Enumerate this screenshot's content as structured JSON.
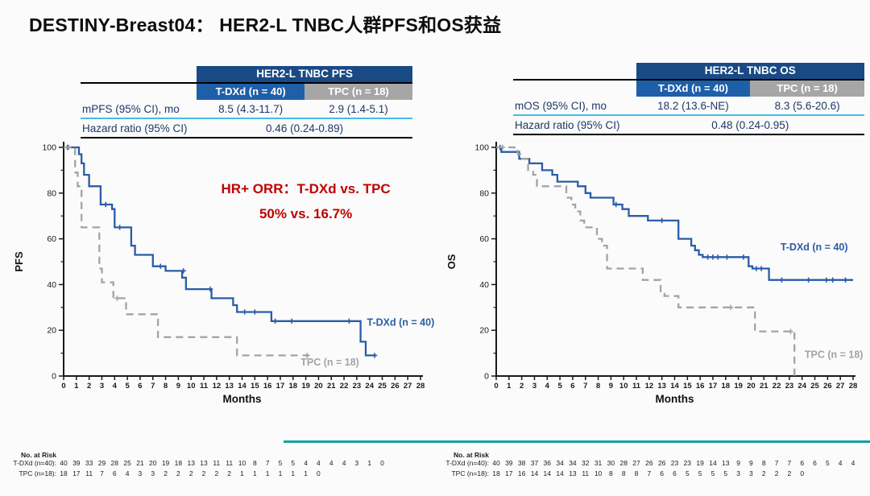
{
  "title": "DESTINY-Breast04： HER2-L TNBC人群PFS和OS获益",
  "colors": {
    "tdxd_blue": "#2a5ca8",
    "tpc_gray": "#a3a3a3",
    "header_navy": "#1a4a85",
    "subheader_blue": "#1e5fa9",
    "subheader_gray": "#a6a6a6",
    "table_text_navy": "#1f3864",
    "cyan_rule": "#44bde8",
    "annotation_red": "#c00000",
    "bottom_teal": "#14a4a1"
  },
  "panels": [
    {
      "table": {
        "header": "HER2-L TNBC PFS",
        "col1": "T-DXd (n = 40)",
        "col2": "TPC (n = 18)",
        "rows": [
          {
            "label": "mPFS (95% CI), mo",
            "v1": "8.5 (4.3-11.7)",
            "v2": "2.9 (1.4-5.1)"
          },
          {
            "label": "Hazard ratio (95% CI)",
            "value": "0.46 (0.24-0.89)"
          }
        ]
      },
      "at_risk": {
        "heading": "No. at Risk",
        "rows": [
          {
            "label": "T-DXd (n=40):",
            "values": [
              40,
              39,
              33,
              29,
              28,
              25,
              21,
              20,
              19,
              18,
              13,
              13,
              11,
              11,
              10,
              8,
              7,
              5,
              5,
              4,
              4,
              4,
              4,
              3,
              1,
              0
            ]
          },
          {
            "label": "TPC (n=18):",
            "values": [
              18,
              17,
              11,
              7,
              6,
              4,
              3,
              3,
              2,
              2,
              2,
              2,
              2,
              2,
              1,
              1,
              1,
              1,
              1,
              1,
              0
            ]
          }
        ]
      }
    },
    {
      "table": {
        "header": "HER2-L TNBC OS",
        "col1": "T-DXd (n = 40)",
        "col2": "TPC (n = 18)",
        "rows": [
          {
            "label": "mOS (95% CI), mo",
            "v1": "18.2 (13.6-NE)",
            "v2": "8.3 (5.6-20.6)"
          },
          {
            "label": "Hazard ratio (95% CI)",
            "value": "0.48 (0.24-0.95)"
          }
        ]
      },
      "at_risk": {
        "heading": "No. at Risk",
        "rows": [
          {
            "label": "T-DXd (n=40):",
            "values": [
              40,
              39,
              38,
              37,
              36,
              34,
              34,
              32,
              31,
              30,
              28,
              27,
              26,
              26,
              23,
              23,
              19,
              14,
              13,
              9,
              9,
              8,
              7,
              7,
              6,
              6,
              5,
              4,
              4
            ]
          },
          {
            "label": "TPC (n=18):",
            "values": [
              18,
              17,
              16,
              14,
              14,
              14,
              13,
              11,
              10,
              8,
              8,
              8,
              7,
              6,
              6,
              5,
              5,
              5,
              5,
              3,
              3,
              2,
              2,
              2,
              0
            ]
          }
        ]
      }
    }
  ],
  "chart_data": [
    {
      "type": "line",
      "subtype": "kaplan-meier",
      "title": "HER2-L TNBC PFS",
      "xlabel": "Months",
      "ylabel": "PFS",
      "xlim": [
        0,
        28
      ],
      "ylim": [
        0,
        100
      ],
      "x_tick_step": 1,
      "y_major_ticks": [
        0,
        20,
        40,
        60,
        80,
        100
      ],
      "y_minor_ticks": [
        10,
        30,
        50,
        70,
        90
      ],
      "grid": false,
      "legend_position": "in-plot-labels",
      "annotation": {
        "color": "#c00000",
        "cx": 19,
        "lines": [
          {
            "text": "HR+ ORR：T-DXd vs. TPC",
            "v": 80
          },
          {
            "text": "50% vs. 16.7%",
            "v": 69
          }
        ]
      },
      "series": [
        {
          "name": "T-DXd (n = 40)",
          "color": "#2a5ca8",
          "dash": false,
          "label_pos": [
            23.8,
            22
          ],
          "points": [
            [
              0,
              100
            ],
            [
              1.2,
              100
            ],
            [
              1.2,
              97
            ],
            [
              1.4,
              97
            ],
            [
              1.4,
              93
            ],
            [
              1.6,
              93
            ],
            [
              1.6,
              88
            ],
            [
              2.0,
              88
            ],
            [
              2.0,
              83
            ],
            [
              2.9,
              83
            ],
            [
              2.9,
              75
            ],
            [
              3.8,
              75
            ],
            [
              3.8,
              73
            ],
            [
              4.0,
              73
            ],
            [
              4.0,
              65
            ],
            [
              5.3,
              65
            ],
            [
              5.3,
              57
            ],
            [
              5.6,
              57
            ],
            [
              5.6,
              53
            ],
            [
              7.0,
              53
            ],
            [
              7.0,
              48
            ],
            [
              8.0,
              48
            ],
            [
              8.0,
              46
            ],
            [
              9.3,
              46
            ],
            [
              9.3,
              43
            ],
            [
              9.6,
              43
            ],
            [
              9.6,
              38
            ],
            [
              11.6,
              38
            ],
            [
              11.6,
              34
            ],
            [
              13.3,
              34
            ],
            [
              13.3,
              31
            ],
            [
              13.6,
              31
            ],
            [
              13.6,
              28
            ],
            [
              16.3,
              28
            ],
            [
              16.3,
              24
            ],
            [
              23.3,
              24
            ],
            [
              23.3,
              15
            ],
            [
              23.7,
              15
            ],
            [
              23.7,
              9
            ],
            [
              24.5,
              9
            ]
          ],
          "censors": [
            [
              0.3,
              100
            ],
            [
              3.3,
              75
            ],
            [
              4.4,
              65
            ],
            [
              7.6,
              48
            ],
            [
              9.4,
              46
            ],
            [
              11.5,
              38
            ],
            [
              14.2,
              28
            ],
            [
              15.0,
              28
            ],
            [
              16.6,
              24
            ],
            [
              17.9,
              24
            ],
            [
              22.4,
              24
            ],
            [
              24.4,
              9
            ]
          ]
        },
        {
          "name": "TPC (n = 18)",
          "color": "#a3a3a3",
          "dash": true,
          "label_pos": [
            18.6,
            4.5
          ],
          "points": [
            [
              0,
              100
            ],
            [
              0.9,
              100
            ],
            [
              0.9,
              89
            ],
            [
              1.1,
              89
            ],
            [
              1.1,
              83
            ],
            [
              1.4,
              83
            ],
            [
              1.4,
              65
            ],
            [
              2.8,
              65
            ],
            [
              2.8,
              47
            ],
            [
              3.0,
              47
            ],
            [
              3.0,
              41
            ],
            [
              3.9,
              41
            ],
            [
              3.9,
              34
            ],
            [
              4.9,
              34
            ],
            [
              4.9,
              27
            ],
            [
              7.4,
              27
            ],
            [
              7.4,
              17
            ],
            [
              13.6,
              17
            ],
            [
              13.6,
              9
            ],
            [
              19.3,
              9
            ]
          ],
          "censors": [
            [
              0.4,
              100
            ],
            [
              4.2,
              34
            ],
            [
              19.1,
              9
            ]
          ]
        }
      ]
    },
    {
      "type": "line",
      "subtype": "kaplan-meier",
      "title": "HER2-L TNBC OS",
      "xlabel": "Months",
      "ylabel": "OS",
      "xlim": [
        0,
        28
      ],
      "ylim": [
        0,
        100
      ],
      "x_tick_step": 1,
      "y_major_ticks": [
        0,
        20,
        40,
        60,
        80,
        100
      ],
      "y_minor_ticks": [
        10,
        30,
        50,
        70,
        90
      ],
      "grid": false,
      "legend_position": "in-plot-labels",
      "series": [
        {
          "name": "T-DXd (n = 40)",
          "color": "#2a5ca8",
          "dash": false,
          "label_pos": [
            22.3,
            55
          ],
          "points": [
            [
              0,
              100
            ],
            [
              0.4,
              100
            ],
            [
              0.4,
              98
            ],
            [
              1.8,
              98
            ],
            [
              1.8,
              95
            ],
            [
              2.6,
              95
            ],
            [
              2.6,
              93
            ],
            [
              3.6,
              93
            ],
            [
              3.6,
              90
            ],
            [
              4.4,
              90
            ],
            [
              4.4,
              88
            ],
            [
              4.8,
              88
            ],
            [
              4.8,
              85
            ],
            [
              6.4,
              85
            ],
            [
              6.4,
              83
            ],
            [
              7.0,
              83
            ],
            [
              7.0,
              80
            ],
            [
              7.4,
              80
            ],
            [
              7.4,
              78
            ],
            [
              9.2,
              78
            ],
            [
              9.2,
              75
            ],
            [
              9.9,
              75
            ],
            [
              9.9,
              73
            ],
            [
              10.4,
              73
            ],
            [
              10.4,
              70
            ],
            [
              11.9,
              70
            ],
            [
              11.9,
              68
            ],
            [
              14.3,
              68
            ],
            [
              14.3,
              60
            ],
            [
              15.3,
              60
            ],
            [
              15.3,
              57
            ],
            [
              15.6,
              57
            ],
            [
              15.6,
              55
            ],
            [
              15.9,
              55
            ],
            [
              15.9,
              53
            ],
            [
              16.2,
              53
            ],
            [
              16.2,
              52
            ],
            [
              19.8,
              52
            ],
            [
              19.8,
              48
            ],
            [
              20.1,
              48
            ],
            [
              20.1,
              47
            ],
            [
              21.4,
              47
            ],
            [
              21.4,
              42
            ],
            [
              28,
              42
            ]
          ],
          "censors": [
            [
              0.3,
              100
            ],
            [
              9.4,
              75
            ],
            [
              13.0,
              68
            ],
            [
              16.6,
              52
            ],
            [
              17.0,
              52
            ],
            [
              17.4,
              52
            ],
            [
              18.1,
              52
            ],
            [
              19.4,
              52
            ],
            [
              20.4,
              47
            ],
            [
              20.8,
              47
            ],
            [
              22.4,
              42
            ],
            [
              24.5,
              42
            ],
            [
              25.9,
              42
            ],
            [
              26.4,
              42
            ],
            [
              27.4,
              42
            ]
          ]
        },
        {
          "name": "TPC (n = 18)",
          "color": "#a3a3a3",
          "dash": true,
          "label_pos": [
            24.2,
            8
          ],
          "points": [
            [
              0,
              100
            ],
            [
              1.7,
              100
            ],
            [
              1.7,
              97
            ],
            [
              1.9,
              97
            ],
            [
              1.9,
              95
            ],
            [
              2.5,
              95
            ],
            [
              2.5,
              90
            ],
            [
              2.9,
              90
            ],
            [
              2.9,
              88
            ],
            [
              3.2,
              88
            ],
            [
              3.2,
              83
            ],
            [
              5.5,
              83
            ],
            [
              5.5,
              78
            ],
            [
              5.9,
              78
            ],
            [
              5.9,
              75
            ],
            [
              6.2,
              75
            ],
            [
              6.2,
              72
            ],
            [
              6.6,
              72
            ],
            [
              6.6,
              68
            ],
            [
              6.9,
              68
            ],
            [
              6.9,
              65
            ],
            [
              7.9,
              65
            ],
            [
              7.9,
              60
            ],
            [
              8.3,
              60
            ],
            [
              8.3,
              57
            ],
            [
              8.7,
              57
            ],
            [
              8.7,
              47
            ],
            [
              11.5,
              47
            ],
            [
              11.5,
              42
            ],
            [
              12.9,
              42
            ],
            [
              12.9,
              36
            ],
            [
              13.2,
              36
            ],
            [
              13.2,
              35
            ],
            [
              14.3,
              35
            ],
            [
              14.3,
              30
            ],
            [
              20.3,
              30
            ],
            [
              20.3,
              19.5
            ],
            [
              23.4,
              19.5
            ],
            [
              23.4,
              0
            ]
          ],
          "censors": [
            [
              0.5,
              100
            ],
            [
              18.4,
              30
            ],
            [
              23.1,
              19.5
            ]
          ]
        }
      ]
    }
  ]
}
